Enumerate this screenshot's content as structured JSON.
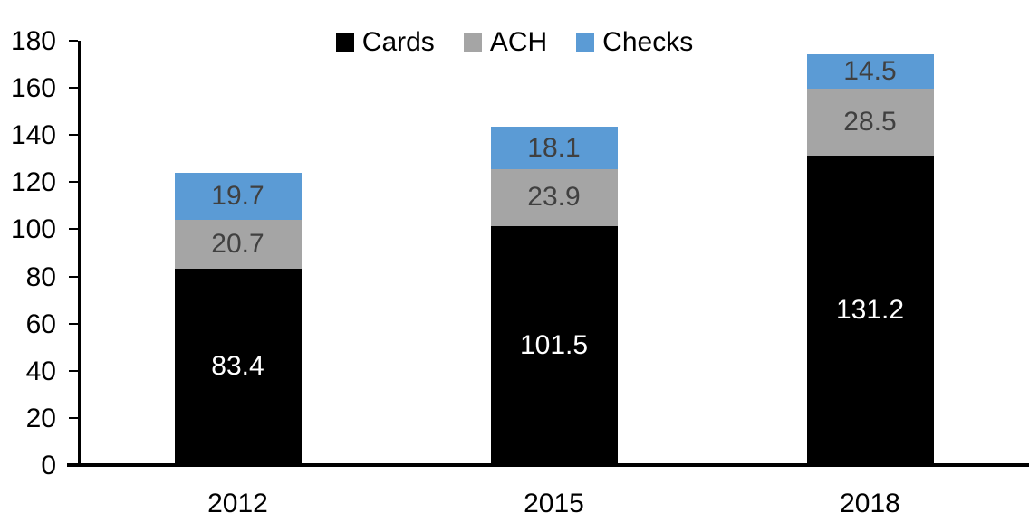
{
  "chart_data": {
    "type": "bar",
    "stacked": true,
    "title": "",
    "xlabel": "",
    "ylabel": "",
    "categories": [
      "2012",
      "2015",
      "2018"
    ],
    "series": [
      {
        "name": "Cards",
        "color": "#000000",
        "label_color": "#ffffff",
        "values": [
          83.4,
          101.5,
          131.2
        ]
      },
      {
        "name": "ACH",
        "color": "#a5a5a5",
        "label_color": "#404040",
        "values": [
          20.7,
          23.9,
          28.5
        ]
      },
      {
        "name": "Checks",
        "color": "#5b9bd5",
        "label_color": "#404040",
        "values": [
          19.7,
          18.1,
          14.5
        ]
      }
    ],
    "totals": [
      123.8,
      143.5,
      174.2
    ],
    "ylim": [
      0,
      180
    ],
    "yticks": [
      0,
      20,
      40,
      60,
      80,
      100,
      120,
      140,
      160,
      180
    ],
    "legend_position": "top-center",
    "legend_entries": [
      "Cards",
      "ACH",
      "Checks"
    ],
    "grid": false,
    "axis_color": "#000000",
    "background_color": "#ffffff"
  }
}
